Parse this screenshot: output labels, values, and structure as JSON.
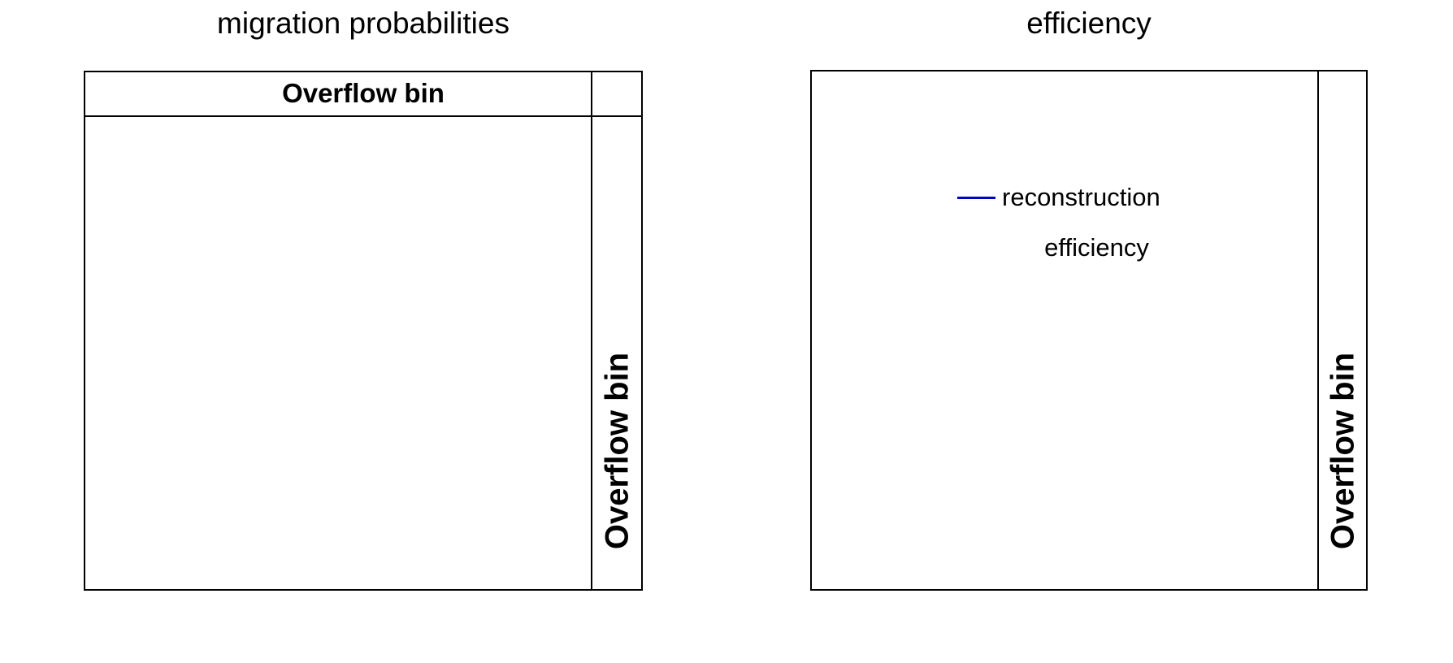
{
  "canvas": {
    "background": "#ffffff",
    "frame_line_color": "#000000"
  },
  "panels": {
    "left": {
      "title": "migration probabilities",
      "header_label": "Overflow bin",
      "overflow_axis_label": "Overflow bin"
    },
    "right": {
      "title": "efficiency",
      "overflow_axis_label": "Overflow bin",
      "legend": {
        "line_color": "#0000cd",
        "label_line1": "reconstruction",
        "label_line2": "efficiency"
      }
    }
  },
  "chart_data": [
    {
      "type": "heatmap",
      "title": "migration probabilities",
      "xlabel": "",
      "ylabel": "",
      "series": [],
      "annotations": [
        "Overflow bin (horizontal band across top of frame)",
        "Overflow bin (vertical band along right edge of frame)"
      ],
      "grid": false,
      "notes": "Empty plot frame: no bin contents, axis ticks or numeric labels are rendered; only the overflow-bin bands are delineated."
    },
    {
      "type": "line",
      "title": "efficiency",
      "xlabel": "",
      "ylabel": "",
      "series": [
        {
          "name": "reconstruction efficiency",
          "color": "#0000cd",
          "x": [],
          "y": []
        }
      ],
      "legend_position": "upper-center",
      "annotations": [
        "Overflow bin (vertical band along right edge of frame)"
      ],
      "grid": false,
      "notes": "Empty plot frame: only the legend entry (blue line marker with two-line label) and the overflow-bin band are rendered."
    }
  ]
}
